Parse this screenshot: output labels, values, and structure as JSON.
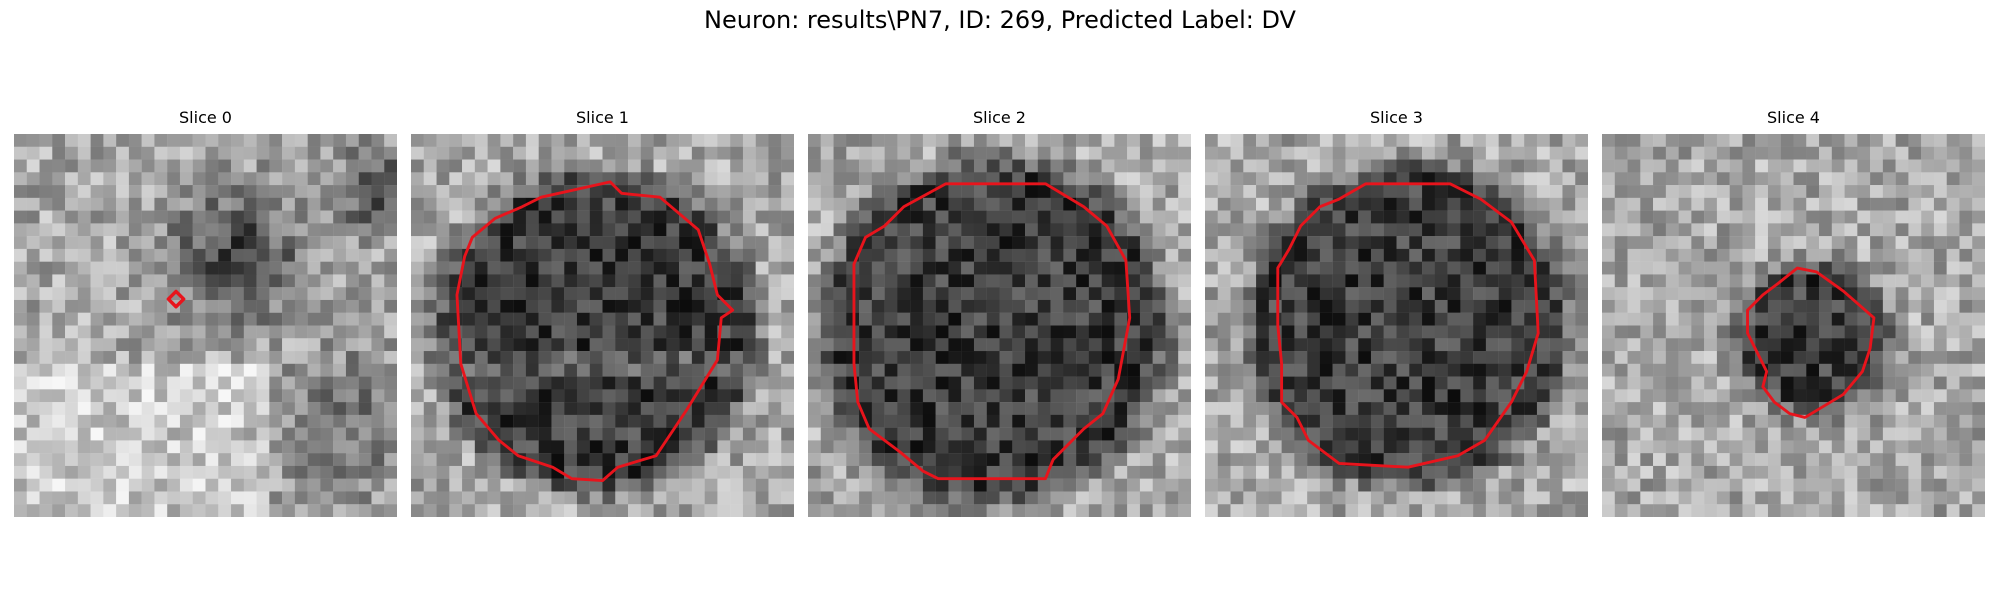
{
  "figure": {
    "title": "Neuron: results\\PN7, ID: 269, Predicted Label: DV"
  },
  "outline_color": "#e8141c",
  "panels": [
    {
      "title": "Slice 0",
      "image": "grainy grayscale microscopy patch with a small red contour"
    },
    {
      "title": "Slice 1",
      "image": "grainy grayscale microscopy patch with a large red polygon contour around a dark cell"
    },
    {
      "title": "Slice 2",
      "image": "grainy grayscale microscopy patch with a large red polygon contour around a dark cell"
    },
    {
      "title": "Slice 3",
      "image": "grainy grayscale microscopy patch with a large red polygon contour around a dark cell"
    },
    {
      "title": "Slice 4",
      "image": "grainy grayscale microscopy patch with a small red polygon contour around a dark cell"
    }
  ]
}
